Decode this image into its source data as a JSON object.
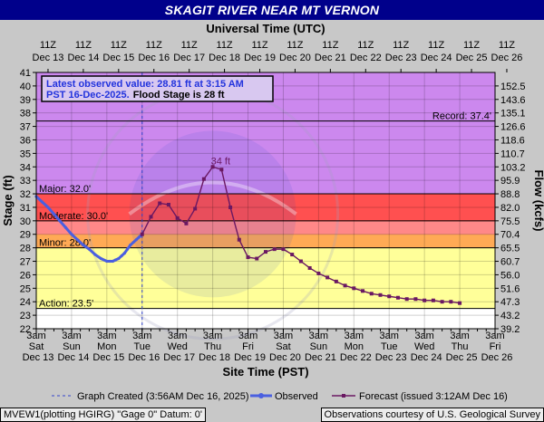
{
  "header": {
    "title": "SKAGIT RIVER NEAR MT VERNON"
  },
  "info_box": {
    "line1": "Latest observed value: 28.81 ft at 3:15 AM",
    "line2_blue": "PST 16-Dec-2025.",
    "line2_black": "Flood Stage is 28 ft"
  },
  "footer": {
    "left": "MVEW1(plotting HGIRG) \"Gage 0\" Datum: 0'",
    "right": "Observations courtesy of U.S. Geological Survey"
  },
  "colors": {
    "record_zone": "#cc88ee",
    "major_zone": "#ff5050",
    "moderate_zone": "#ff8888",
    "minor_zone": "#ffaa55",
    "action_zone": "#ffff99",
    "normal_zone": "#ffffff",
    "observed": "#4a5fe0",
    "forecast": "#6a1862",
    "created_line": "#3344cc"
  },
  "chart_data": {
    "type": "line",
    "top_axis_title": "Universal Time (UTC)",
    "xlabel": "Site Time (PST)",
    "ylabel": "Stage (ft)",
    "y2label": "Flow (kcfs)",
    "ylim": [
      22,
      41
    ],
    "yticks": [
      22,
      23,
      24,
      25,
      26,
      27,
      28,
      29,
      30,
      31,
      32,
      33,
      34,
      35,
      36,
      37,
      38,
      39,
      40,
      41
    ],
    "y2_ticks": [
      {
        "stage": 40,
        "label": "152.5"
      },
      {
        "stage": 39,
        "label": "143.6"
      },
      {
        "stage": 38,
        "label": "135.1"
      },
      {
        "stage": 37,
        "label": "126.6"
      },
      {
        "stage": 36,
        "label": "118.6"
      },
      {
        "stage": 35,
        "label": "110.7"
      },
      {
        "stage": 34,
        "label": "103.2"
      },
      {
        "stage": 33,
        "label": "95.9"
      },
      {
        "stage": 32,
        "label": "88.8"
      },
      {
        "stage": 31,
        "label": "82.0"
      },
      {
        "stage": 30,
        "label": "75.5"
      },
      {
        "stage": 29,
        "label": "70.4"
      },
      {
        "stage": 28,
        "label": "65.5"
      },
      {
        "stage": 27,
        "label": "60.7"
      },
      {
        "stage": 26,
        "label": "56.0"
      },
      {
        "stage": 25,
        "label": "51.6"
      },
      {
        "stage": 24,
        "label": "47.3"
      },
      {
        "stage": 23,
        "label": "43.2"
      },
      {
        "stage": 22,
        "label": "39.2"
      }
    ],
    "xlim": [
      0,
      312
    ],
    "top_ticks": [
      {
        "x": 8,
        "t": "11Z",
        "d": "Dec 13"
      },
      {
        "x": 32,
        "t": "11Z",
        "d": "Dec 14"
      },
      {
        "x": 56,
        "t": "11Z",
        "d": "Dec 15"
      },
      {
        "x": 80,
        "t": "11Z",
        "d": "Dec 16"
      },
      {
        "x": 104,
        "t": "11Z",
        "d": "Dec 17"
      },
      {
        "x": 128,
        "t": "11Z",
        "d": "Dec 18"
      },
      {
        "x": 152,
        "t": "11Z",
        "d": "Dec 19"
      },
      {
        "x": 176,
        "t": "11Z",
        "d": "Dec 20"
      },
      {
        "x": 200,
        "t": "11Z",
        "d": "Dec 21"
      },
      {
        "x": 224,
        "t": "11Z",
        "d": "Dec 22"
      },
      {
        "x": 248,
        "t": "11Z",
        "d": "Dec 23"
      },
      {
        "x": 272,
        "t": "11Z",
        "d": "Dec 24"
      },
      {
        "x": 296,
        "t": "11Z",
        "d": "Dec 25"
      },
      {
        "x": 320,
        "t": "11Z",
        "d": "Dec 26"
      }
    ],
    "bottom_ticks": [
      {
        "x": 0,
        "t": "3am",
        "w": "Sat",
        "d": "Dec 13"
      },
      {
        "x": 24,
        "t": "3am",
        "w": "Sun",
        "d": "Dec 14"
      },
      {
        "x": 48,
        "t": "3am",
        "w": "Mon",
        "d": "Dec 15"
      },
      {
        "x": 72,
        "t": "3am",
        "w": "Tue",
        "d": "Dec 16"
      },
      {
        "x": 96,
        "t": "3am",
        "w": "Wed",
        "d": "Dec 17"
      },
      {
        "x": 120,
        "t": "3am",
        "w": "Thu",
        "d": "Dec 18"
      },
      {
        "x": 144,
        "t": "3am",
        "w": "Fri",
        "d": "Dec 19"
      },
      {
        "x": 168,
        "t": "3am",
        "w": "Sat",
        "d": "Dec 20"
      },
      {
        "x": 192,
        "t": "3am",
        "w": "Sun",
        "d": "Dec 21"
      },
      {
        "x": 216,
        "t": "3am",
        "w": "Mon",
        "d": "Dec 22"
      },
      {
        "x": 240,
        "t": "3am",
        "w": "Tue",
        "d": "Dec 23"
      },
      {
        "x": 264,
        "t": "3am",
        "w": "Wed",
        "d": "Dec 24"
      },
      {
        "x": 288,
        "t": "3am",
        "w": "Thu",
        "d": "Dec 25"
      },
      {
        "x": 312,
        "t": "3am",
        "w": "Fri",
        "d": "Dec 26"
      }
    ],
    "minor_step": 6,
    "flood_categories": [
      {
        "name": "Record",
        "label": "Record: 37.4'",
        "stage": 37.4
      },
      {
        "name": "Major",
        "label": "Major: 32.0'",
        "stage": 32.0
      },
      {
        "name": "Moderate",
        "label": "Moderate: 30.0'",
        "stage": 30.0
      },
      {
        "name": "Minor",
        "label": "Minor: 28.0'",
        "stage": 28.0
      },
      {
        "name": "Action",
        "label": "Action: 23.5'",
        "stage": 23.5
      }
    ],
    "graph_created_x": 72,
    "peak_annotation": {
      "x": 120,
      "y": 34,
      "label": "34 ft"
    },
    "series": [
      {
        "name": "Observed",
        "type": "observed",
        "x": [
          0,
          4,
          8,
          12,
          16,
          20,
          24,
          28,
          32,
          36,
          40,
          44,
          48,
          50,
          52,
          54,
          56,
          58,
          60,
          62,
          64,
          66,
          68,
          70,
          72
        ],
        "y": [
          31.8,
          31.4,
          31.0,
          30.5,
          30.0,
          29.5,
          29.0,
          28.6,
          28.2,
          27.9,
          27.5,
          27.2,
          27.0,
          27.0,
          27.0,
          27.1,
          27.2,
          27.4,
          27.6,
          27.9,
          28.2,
          28.4,
          28.6,
          28.8,
          29.0
        ]
      },
      {
        "name": "Forecast (issued 3:12AM Dec 16)",
        "type": "forecast",
        "x": [
          72,
          78,
          84,
          90,
          96,
          102,
          108,
          114,
          120,
          126,
          132,
          138,
          144,
          150,
          156,
          162,
          168,
          174,
          180,
          186,
          192,
          198,
          204,
          210,
          216,
          222,
          228,
          234,
          240,
          246,
          252,
          258,
          264,
          270,
          276,
          282,
          288
        ],
        "y": [
          29.0,
          30.3,
          31.3,
          31.2,
          30.2,
          29.8,
          30.9,
          33.1,
          34.0,
          33.8,
          31.0,
          28.6,
          27.3,
          27.2,
          27.7,
          27.9,
          27.9,
          27.5,
          27.0,
          26.5,
          26.1,
          25.8,
          25.5,
          25.2,
          25.0,
          24.8,
          24.6,
          24.5,
          24.4,
          24.3,
          24.2,
          24.2,
          24.1,
          24.1,
          24.0,
          24.0,
          23.9
        ]
      }
    ],
    "legend": [
      {
        "type": "created",
        "label": "Graph Created (3:56AM Dec 16, 2025)"
      },
      {
        "type": "observed",
        "label": "Observed"
      },
      {
        "type": "forecast",
        "label": "Forecast (issued 3:12AM Dec 16)"
      }
    ],
    "grid": true
  }
}
